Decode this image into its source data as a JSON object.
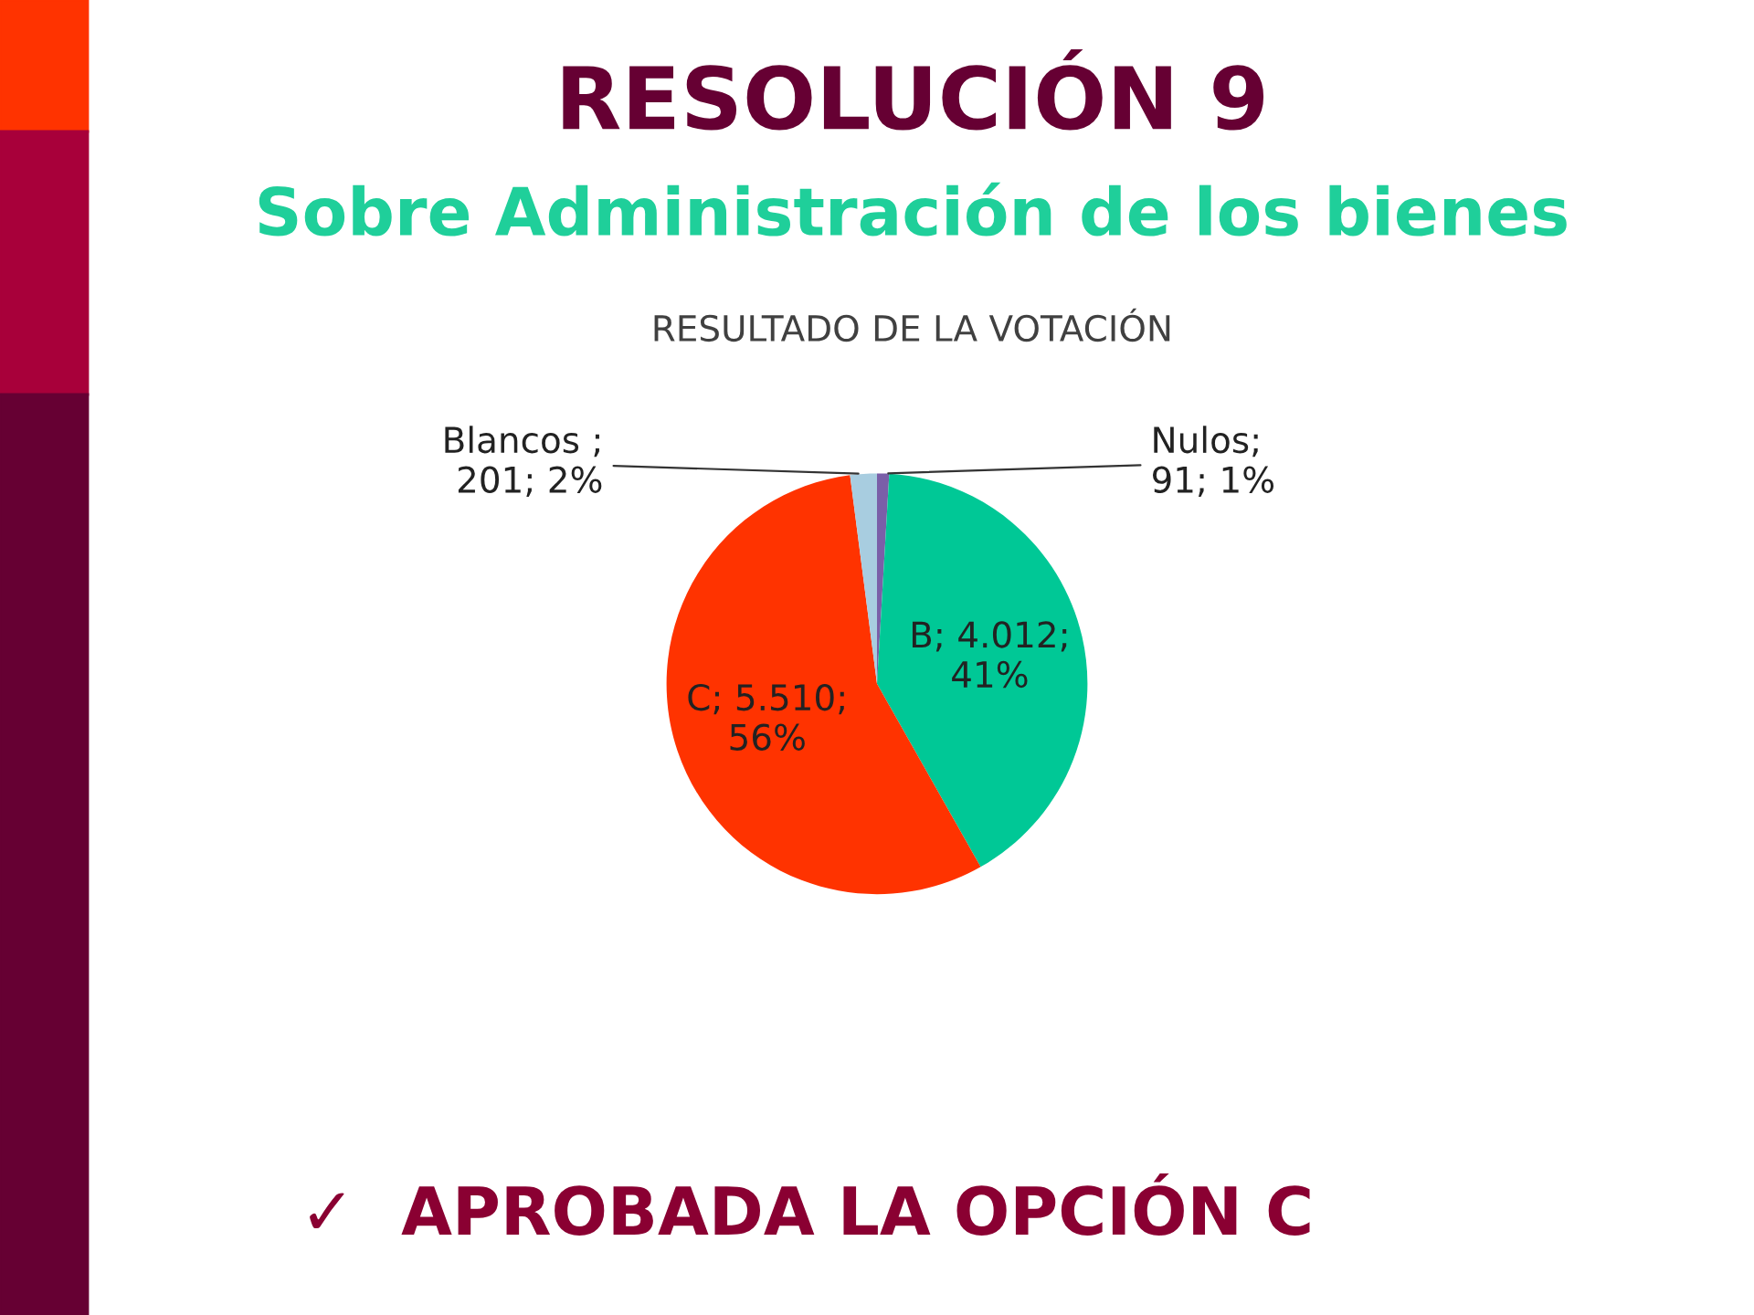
{
  "chart_data": {
    "type": "pie",
    "title": "RESOLUCIÓN 9",
    "subtitle": "Sobre Administración de los bienes",
    "xlabel": "RESULTADO DE LA VOTACIÓN",
    "categories": [
      "Nulos",
      "B",
      "C",
      "Blancos"
    ],
    "values": [
      91,
      4012,
      5510,
      201
    ],
    "colors": [
      "#7a5fa8",
      "#00c896",
      "#ff3300",
      "#a8cde0"
    ],
    "value_labels": [
      ";\n91; 1%",
      "; 4.012;\n41%",
      "; 5.510;\n56%",
      " ;\n201; 2%"
    ],
    "annotations": [
      "✓  APROBADA LA OPCIÓN C"
    ]
  }
}
